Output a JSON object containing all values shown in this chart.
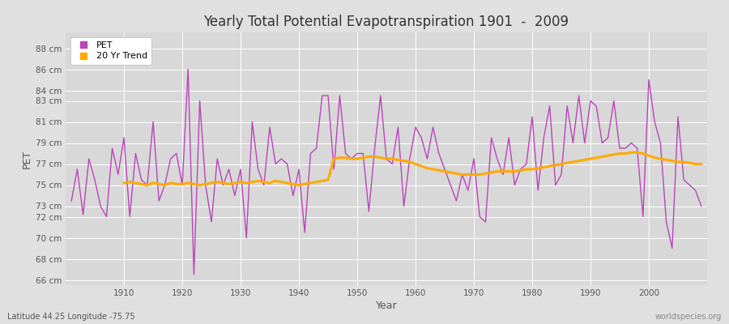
{
  "title": "Yearly Total Potential Evapotranspiration 1901  -  2009",
  "xlabel": "Year",
  "ylabel": "PET",
  "subtitle_left": "Latitude 44.25 Longitude -75.75",
  "subtitle_right": "worldspecies.org",
  "pet_color": "#bb44bb",
  "trend_color": "#ffaa00",
  "bg_color": "#e0e0e0",
  "plot_bg_color": "#d8d8d8",
  "years": [
    1901,
    1902,
    1903,
    1904,
    1905,
    1906,
    1907,
    1908,
    1909,
    1910,
    1911,
    1912,
    1913,
    1914,
    1915,
    1916,
    1917,
    1918,
    1919,
    1920,
    1921,
    1922,
    1923,
    1924,
    1925,
    1926,
    1927,
    1928,
    1929,
    1930,
    1931,
    1932,
    1933,
    1934,
    1935,
    1936,
    1937,
    1938,
    1939,
    1940,
    1941,
    1942,
    1943,
    1944,
    1945,
    1946,
    1947,
    1948,
    1949,
    1950,
    1951,
    1952,
    1953,
    1954,
    1955,
    1956,
    1957,
    1958,
    1959,
    1960,
    1961,
    1962,
    1963,
    1964,
    1965,
    1966,
    1967,
    1968,
    1969,
    1970,
    1971,
    1972,
    1973,
    1974,
    1975,
    1976,
    1977,
    1978,
    1979,
    1980,
    1981,
    1982,
    1983,
    1984,
    1985,
    1986,
    1987,
    1988,
    1989,
    1990,
    1991,
    1992,
    1993,
    1994,
    1995,
    1996,
    1997,
    1998,
    1999,
    2000,
    2001,
    2002,
    2003,
    2004,
    2005,
    2006,
    2007,
    2008,
    2009
  ],
  "pet_values": [
    73.5,
    76.5,
    72.2,
    77.5,
    75.5,
    73.0,
    72.0,
    78.5,
    76.0,
    79.5,
    72.0,
    78.0,
    75.5,
    75.0,
    81.0,
    73.5,
    75.0,
    77.5,
    78.0,
    75.0,
    86.0,
    66.5,
    83.0,
    75.0,
    71.5,
    77.5,
    75.0,
    76.5,
    74.0,
    76.5,
    70.0,
    81.0,
    76.5,
    75.0,
    80.5,
    77.0,
    77.5,
    77.0,
    74.0,
    76.5,
    70.5,
    78.0,
    78.5,
    83.5,
    83.5,
    76.5,
    83.5,
    78.0,
    77.5,
    78.0,
    78.0,
    72.5,
    78.5,
    83.5,
    77.5,
    77.0,
    80.5,
    73.0,
    77.5,
    80.5,
    79.5,
    77.5,
    80.5,
    78.0,
    76.5,
    75.0,
    73.5,
    76.0,
    74.5,
    77.5,
    72.0,
    71.5,
    79.5,
    77.5,
    76.0,
    79.5,
    75.0,
    76.5,
    77.0,
    81.5,
    74.5,
    79.5,
    82.5,
    75.0,
    76.0,
    82.5,
    79.0,
    83.5,
    79.0,
    83.0,
    82.5,
    79.0,
    79.5,
    83.0,
    78.5,
    78.5,
    79.0,
    78.5,
    72.0,
    85.0,
    81.0,
    79.0,
    71.5,
    69.0,
    81.5,
    75.5,
    75.0,
    74.5,
    73.0
  ],
  "trend_years": [
    1910,
    1911,
    1912,
    1913,
    1914,
    1915,
    1916,
    1917,
    1918,
    1919,
    1920,
    1921,
    1922,
    1923,
    1924,
    1925,
    1926,
    1927,
    1928,
    1929,
    1930,
    1931,
    1932,
    1933,
    1934,
    1935,
    1936,
    1937,
    1938,
    1939,
    1940,
    1941,
    1942,
    1943,
    1944,
    1945,
    1946,
    1947,
    1948,
    1949,
    1950,
    1951,
    1952,
    1953,
    1954,
    1955,
    1956,
    1957,
    1958,
    1959,
    1960,
    1961,
    1962,
    1963,
    1964,
    1965,
    1966,
    1967,
    1968,
    1969,
    1970,
    1971,
    1972,
    1973,
    1974,
    1975,
    1976,
    1977,
    1978,
    1979,
    1980,
    1981,
    1982,
    1983,
    1984,
    1985,
    1986,
    1987,
    1988,
    1989,
    1990,
    1991,
    1992,
    1993,
    1994,
    1995,
    1996,
    1997,
    1998,
    1999,
    2000,
    2001,
    2002,
    2003,
    2004,
    2005,
    2006,
    2007,
    2008,
    2009
  ],
  "trend_values": [
    75.2,
    75.3,
    75.2,
    75.1,
    75.0,
    75.2,
    75.1,
    75.0,
    75.2,
    75.1,
    75.1,
    75.2,
    75.1,
    75.0,
    75.1,
    75.2,
    75.3,
    75.2,
    75.1,
    75.2,
    75.3,
    75.2,
    75.3,
    75.4,
    75.3,
    75.2,
    75.4,
    75.3,
    75.2,
    75.1,
    75.0,
    75.1,
    75.2,
    75.3,
    75.4,
    75.5,
    77.5,
    77.6,
    77.6,
    77.5,
    77.5,
    77.6,
    77.7,
    77.7,
    77.6,
    77.5,
    77.5,
    77.4,
    77.3,
    77.2,
    77.0,
    76.8,
    76.6,
    76.5,
    76.4,
    76.3,
    76.2,
    76.1,
    76.0,
    76.0,
    76.0,
    76.0,
    76.1,
    76.2,
    76.3,
    76.3,
    76.3,
    76.3,
    76.4,
    76.5,
    76.5,
    76.6,
    76.7,
    76.8,
    76.9,
    77.0,
    77.1,
    77.2,
    77.3,
    77.4,
    77.5,
    77.6,
    77.7,
    77.8,
    77.9,
    78.0,
    78.0,
    78.1,
    78.1,
    78.0,
    77.8,
    77.6,
    77.5,
    77.4,
    77.3,
    77.2,
    77.2,
    77.1,
    77.0,
    77.0
  ],
  "ytick_labels": [
    "66 cm",
    "68 cm",
    "70 cm",
    "72 cm",
    "73 cm",
    "75 cm",
    "77 cm",
    "79 cm",
    "81 cm",
    "83 cm",
    "84 cm",
    "86 cm",
    "88 cm"
  ],
  "ytick_values": [
    66,
    68,
    70,
    72,
    73,
    75,
    77,
    79,
    81,
    83,
    84,
    86,
    88
  ],
  "ylim": [
    65.5,
    89.5
  ],
  "xlim": [
    1900,
    2010
  ],
  "xticks": [
    1910,
    1920,
    1930,
    1940,
    1950,
    1960,
    1970,
    1980,
    1990,
    2000
  ]
}
